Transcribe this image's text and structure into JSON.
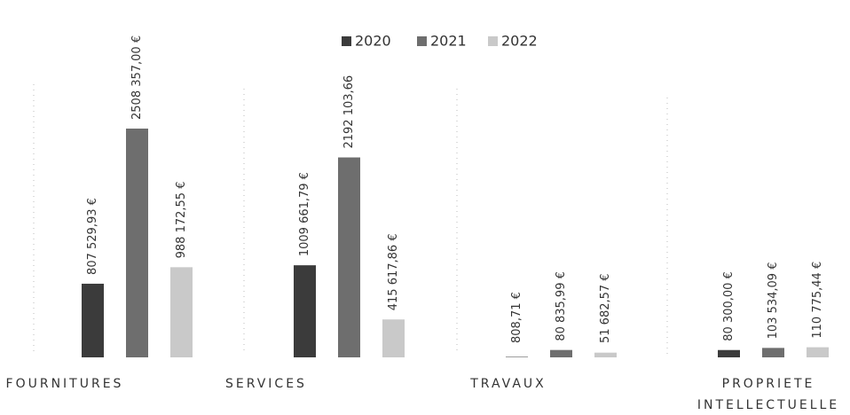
{
  "chart_data": {
    "type": "bar",
    "categories": [
      "FOURNITURES",
      "SERVICES",
      "TRAVAUX",
      "PROPRIETE INTELLECTUELLE"
    ],
    "series": [
      {
        "name": "2020",
        "color": "#3b3b3b",
        "values": [
          807529.93,
          1009661.79,
          808.71,
          80300.0
        ],
        "value_labels": [
          "807 529,93 €",
          "1009 661,79 €",
          "808,71 €",
          "80 300,00 €"
        ]
      },
      {
        "name": "2021",
        "color": "#6e6e6e",
        "values": [
          2508357.0,
          2192103.66,
          80835.99,
          103534.09
        ],
        "value_labels": [
          "2508 357,00 €",
          "2192 103,66",
          "80 835,99 €",
          "103 534,09 €"
        ]
      },
      {
        "name": "2022",
        "color": "#c9c9c9",
        "values": [
          988172.55,
          415617.86,
          51682.57,
          110775.44
        ],
        "value_labels": [
          "988 172,55 €",
          "415 617,86 €",
          "51 682,57 €",
          "110 775,44 €"
        ]
      }
    ],
    "legend": "top"
  }
}
